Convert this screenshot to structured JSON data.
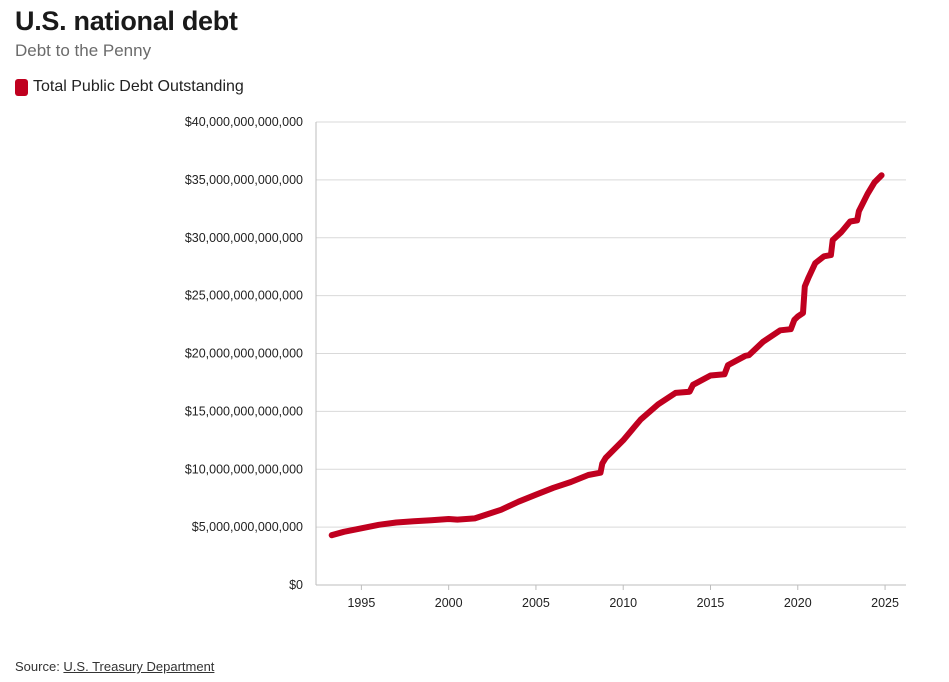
{
  "header": {
    "title": "U.S. national debt",
    "subtitle": "Debt to the Penny"
  },
  "legend": {
    "label": "Total Public Debt Outstanding",
    "color": "#c0001f"
  },
  "footer": {
    "source_prefix": "Source: ",
    "source_link": "U.S. Treasury Department"
  },
  "colors": {
    "series": "#c0001f",
    "grid": "#d9d9d9",
    "axis": "#bdbdbd"
  },
  "chart_data": {
    "type": "line",
    "title": "U.S. national debt",
    "subtitle": "Debt to the Penny",
    "xlabel": "",
    "ylabel": "",
    "xlim": [
      1992.4,
      2026.2
    ],
    "ylim": [
      0,
      40000000000000
    ],
    "x_ticks": [
      1995,
      2000,
      2005,
      2010,
      2015,
      2020,
      2025
    ],
    "y_ticks": [
      0,
      5000000000000,
      10000000000000,
      15000000000000,
      20000000000000,
      25000000000000,
      30000000000000,
      35000000000000,
      40000000000000
    ],
    "y_tick_labels": [
      "$0",
      "$5,000,000,000,000",
      "$10,000,000,000,000",
      "$15,000,000,000,000",
      "$20,000,000,000,000",
      "$25,000,000,000,000",
      "$30,000,000,000,000",
      "$35,000,000,000,000",
      "$40,000,000,000,000"
    ],
    "grid": true,
    "legend_position": "top-left",
    "series": [
      {
        "name": "Total Public Debt Outstanding",
        "color": "#c0001f",
        "x": [
          1993.3,
          1994.0,
          1995.0,
          1996.0,
          1997.0,
          1998.0,
          1999.0,
          2000.0,
          2000.5,
          2001.0,
          2001.5,
          2002.0,
          2003.0,
          2004.0,
          2005.0,
          2006.0,
          2007.0,
          2008.0,
          2008.7,
          2008.8,
          2009.0,
          2010.0,
          2011.0,
          2012.0,
          2013.0,
          2013.8,
          2014.0,
          2015.0,
          2015.8,
          2016.0,
          2017.0,
          2017.2,
          2018.0,
          2019.0,
          2019.6,
          2019.8,
          2020.0,
          2020.3,
          2020.4,
          2020.6,
          2021.0,
          2021.5,
          2021.9,
          2022.0,
          2022.5,
          2023.0,
          2023.4,
          2023.5,
          2024.0,
          2024.4,
          2024.8
        ],
        "values": [
          4300000000000,
          4600000000000,
          4900000000000,
          5200000000000,
          5400000000000,
          5500000000000,
          5600000000000,
          5700000000000,
          5650000000000,
          5700000000000,
          5750000000000,
          6000000000000,
          6500000000000,
          7200000000000,
          7800000000000,
          8400000000000,
          8900000000000,
          9500000000000,
          9700000000000,
          10500000000000,
          11000000000000,
          12500000000000,
          14300000000000,
          15600000000000,
          16600000000000,
          16700000000000,
          17300000000000,
          18100000000000,
          18200000000000,
          19000000000000,
          19800000000000,
          19850000000000,
          21000000000000,
          22000000000000,
          22100000000000,
          22900000000000,
          23200000000000,
          23500000000000,
          25800000000000,
          26500000000000,
          27800000000000,
          28400000000000,
          28500000000000,
          29800000000000,
          30500000000000,
          31400000000000,
          31500000000000,
          32300000000000,
          33800000000000,
          34800000000000,
          35400000000000
        ]
      }
    ]
  }
}
